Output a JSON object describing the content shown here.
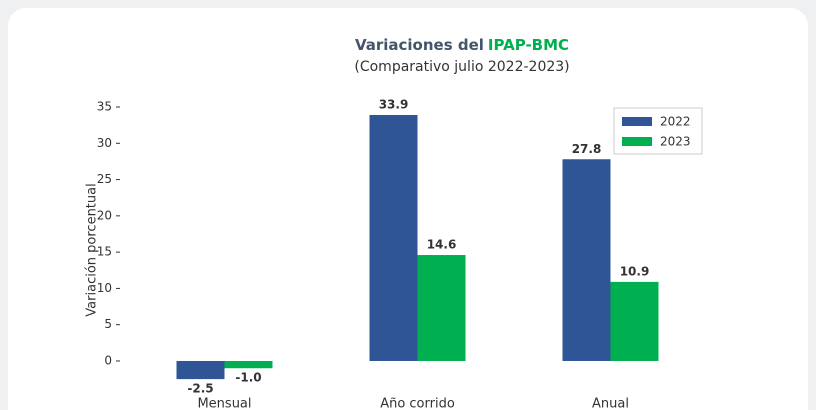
{
  "chart_data": {
    "type": "bar",
    "title": {
      "text": "Variaciones del",
      "highlight": "IPAP-BMC"
    },
    "subtitle": "(Comparativo julio 2022-2023)",
    "y_label": "Variación porcentual",
    "categories": [
      "Mensual",
      "Año corrido",
      "Anual"
    ],
    "series": [
      {
        "name": "2022",
        "color": "#2f5597",
        "values": [
          -2.5,
          33.9,
          27.8
        ]
      },
      {
        "name": "2023",
        "color": "#00b050",
        "values": [
          -1.0,
          14.6,
          10.9
        ],
        "value_labels": [
          "-1.0",
          "14.6",
          "10.9"
        ]
      }
    ],
    "ylim": [
      -4,
      37
    ],
    "yticks": [
      0,
      5,
      10,
      15,
      20,
      25,
      30,
      35
    ],
    "grid": false,
    "legend": "upper right"
  }
}
